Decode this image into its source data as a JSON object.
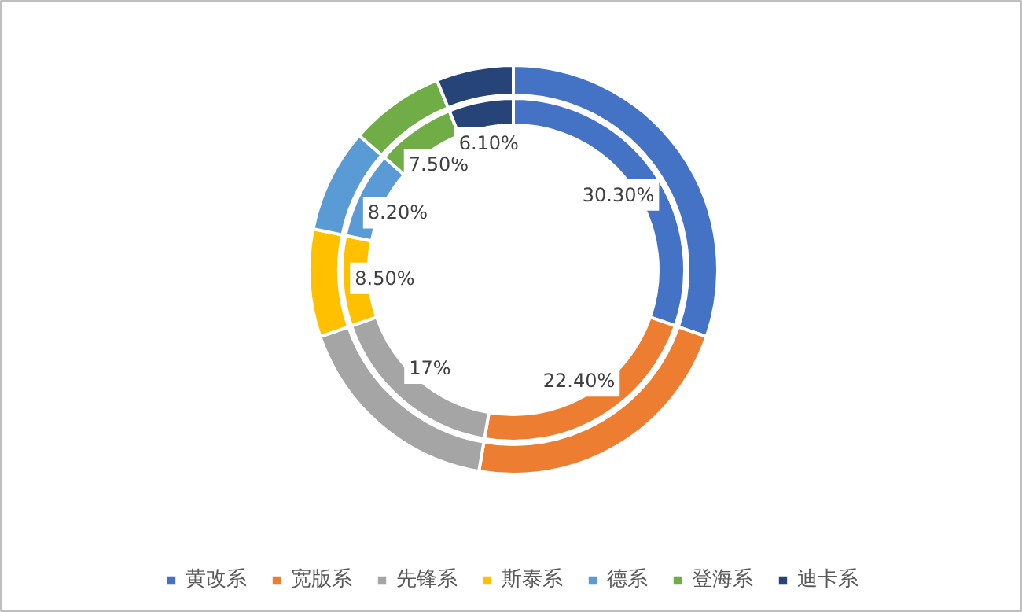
{
  "chart_data": {
    "type": "donut",
    "categories": [
      "黄改系",
      "宽版系",
      "先锋系",
      "斯泰系",
      "德系",
      "登海系",
      "迪卡系"
    ],
    "colors": [
      "#4472c4",
      "#ed7d31",
      "#a5a5a5",
      "#ffc000",
      "#5b9bd5",
      "#70ad47",
      "#264478"
    ],
    "series": [
      {
        "values": [
          30.3,
          22.4,
          17,
          8.5,
          8.2,
          7.5,
          6.1
        ],
        "value_labels": [
          "30.30%",
          "22.40%",
          "17%",
          "8.50%",
          "8.20%",
          "7.50%",
          "6.10%"
        ]
      },
      {
        "values": [
          30.3,
          22.4,
          17,
          8.5,
          8.2,
          7.5,
          6.1
        ]
      }
    ],
    "legend": "bottom"
  }
}
